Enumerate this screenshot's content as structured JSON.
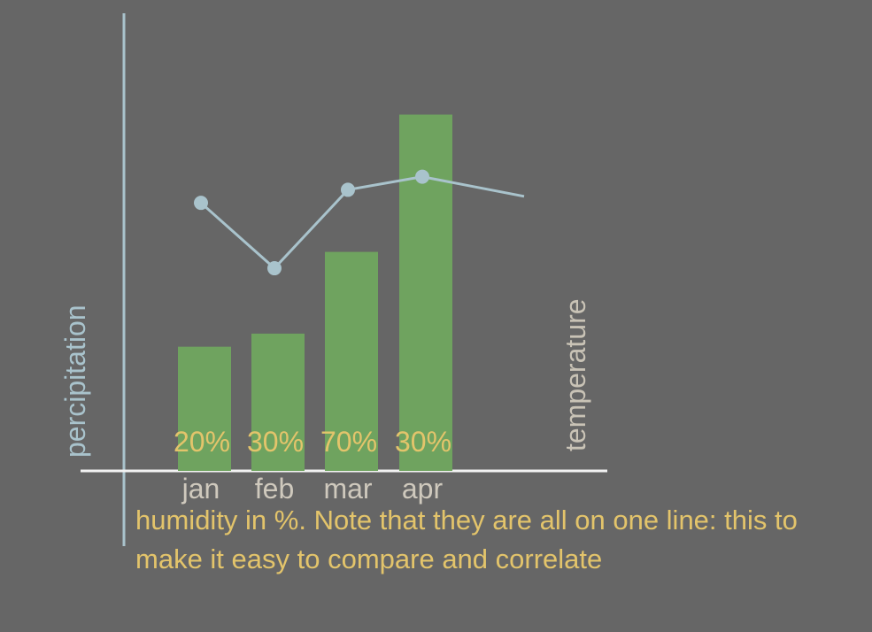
{
  "chart_data": {
    "type": "bar",
    "categories": [
      "jan",
      "feb",
      "mar",
      "apr"
    ],
    "series": [
      {
        "values": [
          38,
          42,
          67,
          109
        ]
      }
    ],
    "line_series": {
      "values": [
        82,
        62,
        86,
        90
      ],
      "extra_point": 84
    },
    "data_labels": [
      "20%",
      "30%",
      "70%",
      "30%"
    ],
    "ylabel_left": "percipitation",
    "ylabel_right": "temperature",
    "note": "humidity in %. Note that they are all on one line: this to make it easy to compare and correlate",
    "ylim": [
      0,
      140
    ],
    "grid": false,
    "colors": {
      "background": "#666666",
      "bar": "#6fa35f",
      "line": "#a9c3cc",
      "axis_x": "#f2f2f2",
      "axis_y": "#a9c3cc",
      "humidity_label": "#e3c46b",
      "tick_label": "#cfc9bd"
    }
  }
}
